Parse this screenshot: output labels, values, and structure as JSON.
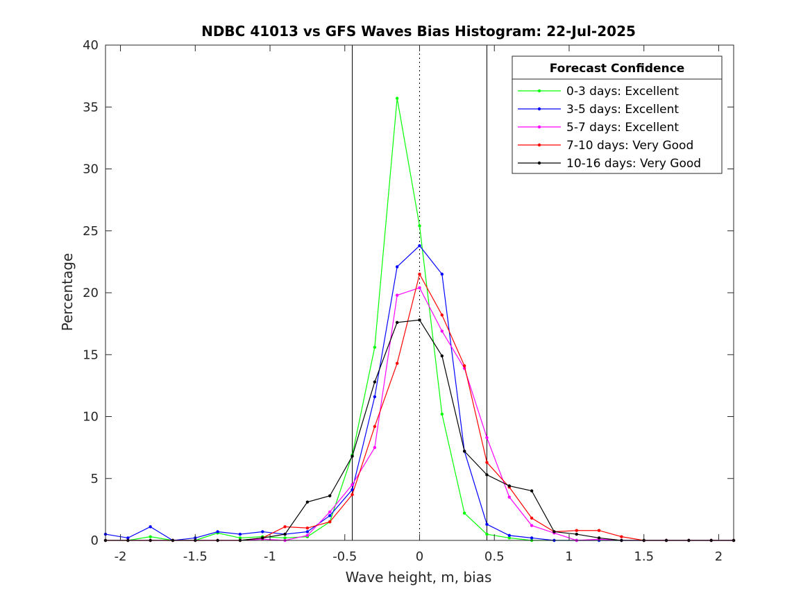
{
  "chart_data": {
    "type": "line",
    "title": "NDBC 41013 vs GFS Waves Bias Histogram: 22-Jul-2025",
    "xlabel": "Wave height, m, bias",
    "ylabel": "Percentage",
    "xlim": [
      -2.1,
      2.1
    ],
    "ylim": [
      0,
      40
    ],
    "xticks": [
      -2,
      -1.5,
      -1,
      -0.5,
      0,
      0.5,
      1,
      1.5,
      2
    ],
    "xtick_labels": [
      "-2",
      "-1.5",
      "-1",
      "-0.5",
      "0",
      "0.5",
      "1",
      "1.5",
      "2"
    ],
    "yticks": [
      0,
      5,
      10,
      15,
      20,
      25,
      30,
      35,
      40
    ],
    "ytick_labels": [
      "0",
      "5",
      "10",
      "15",
      "20",
      "25",
      "30",
      "35",
      "40"
    ],
    "grid": false,
    "reference_lines": [
      {
        "x": -0.45,
        "style": "solid"
      },
      {
        "x": 0,
        "style": "dotted"
      },
      {
        "x": 0.45,
        "style": "solid"
      }
    ],
    "legend": {
      "title": "Forecast Confidence",
      "placement": "top-right"
    },
    "x": [
      -2.1,
      -1.95,
      -1.8,
      -1.65,
      -1.5,
      -1.35,
      -1.2,
      -1.05,
      -0.9,
      -0.75,
      -0.6,
      -0.45,
      -0.3,
      -0.15,
      0,
      0.15,
      0.3,
      0.45,
      0.6,
      0.75,
      0.9,
      1.05,
      1.2,
      1.35,
      1.5,
      1.65,
      1.8,
      1.95,
      2.1
    ],
    "series": [
      {
        "name": "0-3 days: Excellent",
        "color": "#00ff00",
        "values": [
          0,
          0,
          0.3,
          0,
          0,
          0.6,
          0.2,
          0.3,
          0.2,
          0.3,
          1.5,
          6.9,
          15.6,
          35.7,
          25.4,
          10.2,
          2.2,
          0.5,
          0.2,
          0,
          0,
          0,
          0,
          0,
          0,
          0,
          0,
          0,
          0
        ]
      },
      {
        "name": "3-5 days: Excellent",
        "color": "#0000ff",
        "values": [
          0.5,
          0.2,
          1.1,
          0,
          0.2,
          0.7,
          0.5,
          0.7,
          0.5,
          0.7,
          2.0,
          4.1,
          11.6,
          22.1,
          23.8,
          21.5,
          7.2,
          1.3,
          0.4,
          0.2,
          0,
          0,
          0,
          0,
          0,
          0,
          0,
          0,
          0
        ]
      },
      {
        "name": "5-7 days: Excellent",
        "color": "#ff00ff",
        "values": [
          0,
          0,
          0,
          0,
          0,
          0,
          0,
          0.1,
          0,
          0.4,
          2.3,
          4.5,
          7.5,
          19.8,
          20.4,
          16.9,
          13.9,
          8.3,
          3.5,
          1.2,
          0.6,
          0,
          0.1,
          0,
          0,
          0,
          0,
          0,
          0
        ]
      },
      {
        "name": "7-10 days: Very Good",
        "color": "#ff0000",
        "values": [
          0,
          0,
          0,
          0,
          0,
          0,
          0,
          0.2,
          1.1,
          1.0,
          1.5,
          3.7,
          9.2,
          14.3,
          21.5,
          18.2,
          14.1,
          6.3,
          4.3,
          1.8,
          0.7,
          0.8,
          0.8,
          0.3,
          0,
          0,
          0,
          0,
          0
        ]
      },
      {
        "name": "10-16 days: Very Good",
        "color": "#000000",
        "values": [
          0,
          0,
          0,
          0,
          0,
          0,
          0,
          0.2,
          0.5,
          3.1,
          3.6,
          6.8,
          12.8,
          17.6,
          17.8,
          14.9,
          7.2,
          5.3,
          4.4,
          4.0,
          0.7,
          0.5,
          0.2,
          0,
          0,
          0,
          0,
          0,
          0
        ]
      }
    ]
  }
}
